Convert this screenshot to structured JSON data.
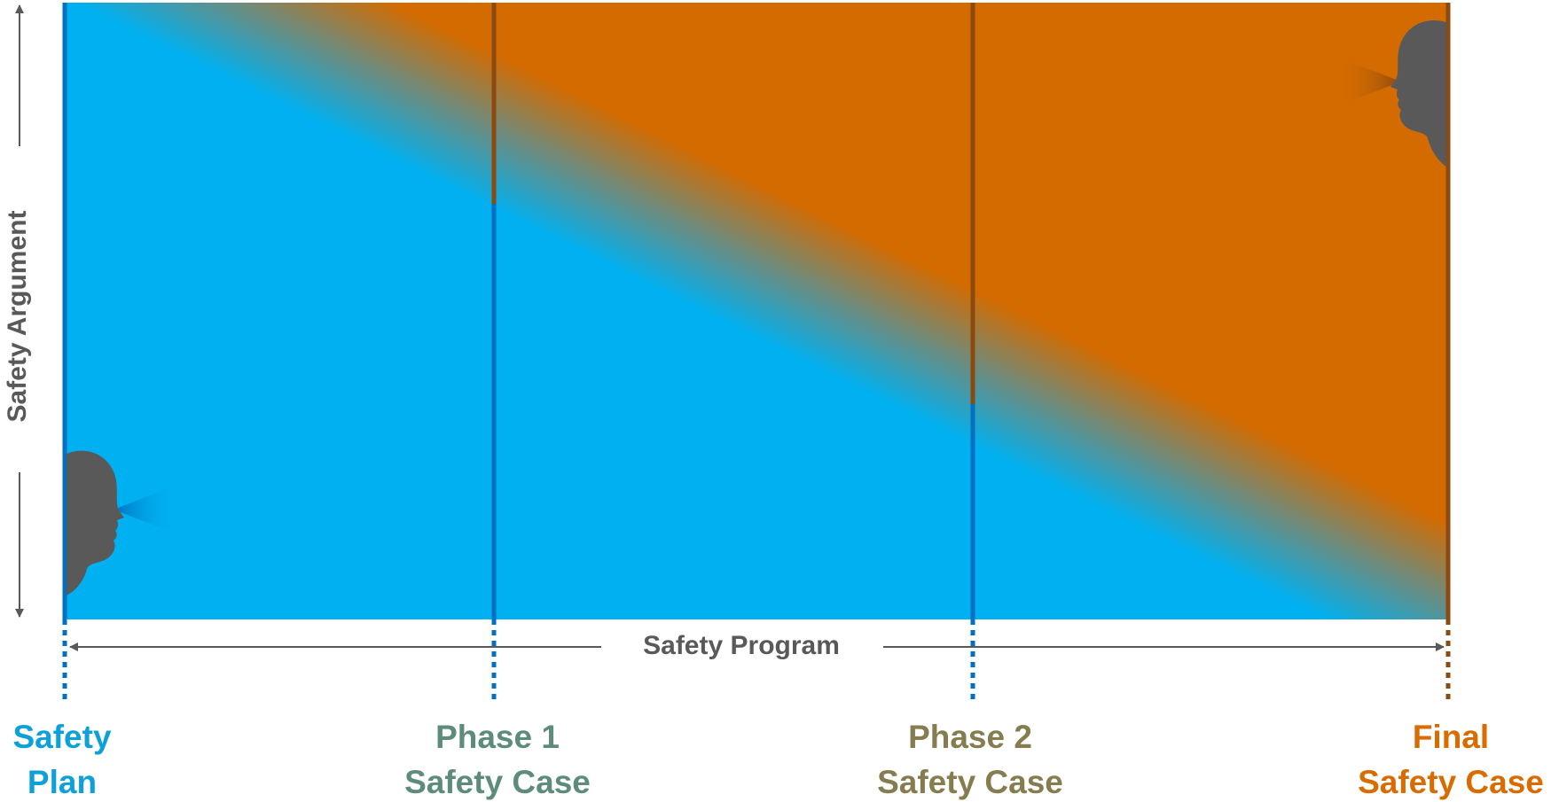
{
  "axis": {
    "vertical_label": "Safety Argument",
    "horizontal_label": "Safety Program"
  },
  "milestones": [
    {
      "id": "safety-plan",
      "line1": "Safety",
      "line2": "Plan",
      "color": "#0ea0d8"
    },
    {
      "id": "phase-1",
      "line1": "Phase 1",
      "line2": "Safety Case",
      "color": "#5d8c7c"
    },
    {
      "id": "phase-2",
      "line1": "Phase 2",
      "line2": "Safety Case",
      "color": "#857d50"
    },
    {
      "id": "final",
      "line1": "Final",
      "line2": "Safety Case",
      "color": "#d96c00"
    }
  ],
  "colors": {
    "blue_region": "#00b0f0",
    "orange_region": "#d46b00",
    "blue_line": "#0070c0",
    "brown_line": "#8b4a0f",
    "arrow": "#595959",
    "head": "#595959"
  },
  "icons": [
    "head-silhouette-left-icon",
    "head-silhouette-right-icon"
  ]
}
